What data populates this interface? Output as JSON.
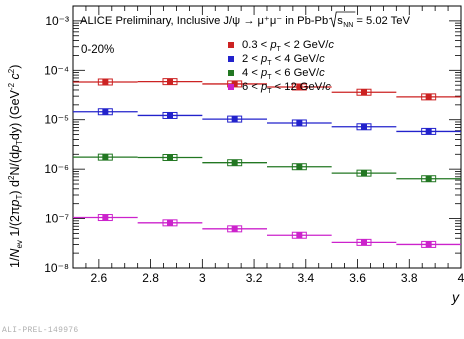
{
  "watermark": "ALI-PREL-149976",
  "chart_data": {
    "type": "scatter",
    "title": "ALICE Preliminary, Inclusive J/ψ → μ⁺μ⁻ in Pb-Pb √s_NN = 5.02 TeV",
    "title_parts": {
      "main": "ALICE Preliminary, Inclusive J/ψ → μ⁺μ⁻ in Pb-Pb ",
      "sqrt_label": "s",
      "sqrt_sub": "NN",
      "energy": " = 5.02 TeV"
    },
    "centrality": "0-20%",
    "xlabel": "y",
    "ylabel": "1/N_ev 1/(2πp_T) d²N/(dp_T dy) (GeV⁻² c²)",
    "xlim": [
      2.5,
      4.0
    ],
    "ylim": [
      1e-08,
      0.002
    ],
    "yscale": "log",
    "x_ticks": [
      "2.6",
      "2.8",
      "3",
      "3.2",
      "3.4",
      "3.6",
      "3.8",
      "4"
    ],
    "y_ticks": [
      "10⁻⁸",
      "10⁻⁷",
      "10⁻⁶",
      "10⁻⁵",
      "10⁻⁴",
      "10⁻³"
    ],
    "x_bins": [
      [
        2.5,
        2.75
      ],
      [
        2.75,
        3.0
      ],
      [
        3.0,
        3.25
      ],
      [
        3.25,
        3.5
      ],
      [
        3.5,
        3.75
      ],
      [
        3.75,
        4.0
      ]
    ],
    "x": [
      2.625,
      2.875,
      3.125,
      3.375,
      3.625,
      3.875
    ],
    "legend_position": "top-right",
    "series": [
      {
        "name": "0.3 < p_T < 2 GeV/c",
        "color": "#cc2222",
        "values": [
          5.8e-05,
          5.9e-05,
          5.3e-05,
          4.6e-05,
          3.6e-05,
          2.9e-05
        ]
      },
      {
        "name": "2 < p_T < 4 GeV/c",
        "color": "#2222cc",
        "values": [
          1.45e-05,
          1.22e-05,
          1.03e-05,
          8.6e-06,
          7.2e-06,
          5.8e-06
        ]
      },
      {
        "name": "4 < p_T < 6 GeV/c",
        "color": "#227722",
        "values": [
          1.75e-06,
          1.72e-06,
          1.35e-06,
          1.12e-06,
          8.3e-07,
          6.4e-07
        ]
      },
      {
        "name": "6 < p_T < 12 GeV/c",
        "color": "#cc22cc",
        "values": [
          1.05e-07,
          8.2e-08,
          6.2e-08,
          4.6e-08,
          3.3e-08,
          3e-08
        ]
      }
    ]
  }
}
